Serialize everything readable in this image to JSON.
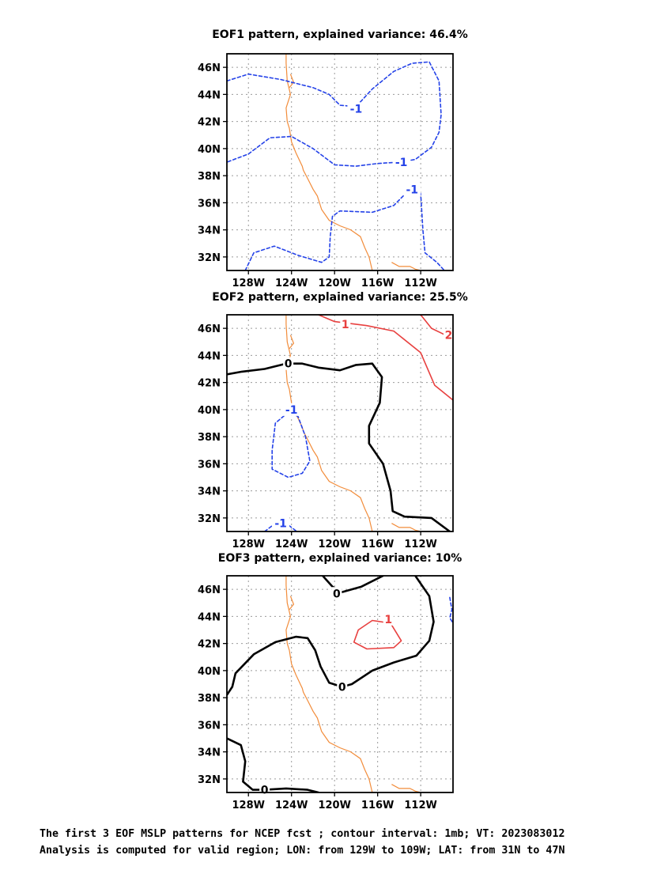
{
  "chart_data": [
    {
      "type": "contour",
      "title": "EOF1 pattern, explained variance: 46.4%",
      "xlim": [
        -130,
        -109
      ],
      "ylim": [
        31,
        47
      ],
      "x_ticks": [
        "128W",
        "124W",
        "120W",
        "116W",
        "112W"
      ],
      "y_ticks": [
        "32N",
        "34N",
        "36N",
        "38N",
        "40N",
        "42N",
        "44N",
        "46N"
      ],
      "grid": true,
      "contours": [
        {
          "level": -1,
          "label": "-1",
          "color": "#2442e8",
          "style": "dashed",
          "points": [
            [
              -130,
              45.0
            ],
            [
              -128,
              45.5
            ],
            [
              -125,
              45.1
            ],
            [
              -122,
              44.5
            ],
            [
              -120.5,
              44.0
            ],
            [
              -119.5,
              43.2
            ],
            [
              -118,
              43.1
            ],
            [
              -116.5,
              44.4
            ],
            [
              -114.5,
              45.7
            ],
            [
              -112.8,
              46.3
            ],
            [
              -111.2,
              46.4
            ],
            [
              -110.3,
              45.0
            ],
            [
              -110.1,
              42.5
            ],
            [
              -110.3,
              41.2
            ],
            [
              -111,
              40.1
            ],
            [
              -112.5,
              39.2
            ],
            [
              -114,
              39.0
            ],
            [
              -116,
              38.9
            ],
            [
              -118,
              38.7
            ],
            [
              -120,
              38.8
            ],
            [
              -122,
              40.0
            ],
            [
              -124,
              40.9
            ],
            [
              -126,
              40.8
            ],
            [
              -128,
              39.6
            ],
            [
              -130,
              39.0
            ]
          ]
        },
        {
          "level": -1,
          "label": "-1",
          "color": "#2442e8",
          "style": "dashed",
          "points": [
            [
              -128.3,
              31.0
            ],
            [
              -127.5,
              32.3
            ],
            [
              -125.6,
              32.8
            ],
            [
              -123.3,
              32.1
            ],
            [
              -121.2,
              31.6
            ],
            [
              -120.5,
              32.0
            ],
            [
              -120.4,
              33.5
            ],
            [
              -120.2,
              35.0
            ],
            [
              -119.5,
              35.4
            ],
            [
              -116.5,
              35.3
            ],
            [
              -114.5,
              35.8
            ],
            [
              -113.5,
              36.6
            ],
            [
              -112.6,
              37.0
            ],
            [
              -112,
              36.7
            ],
            [
              -111.8,
              34.0
            ],
            [
              -111.6,
              32.3
            ],
            [
              -110.5,
              31.6
            ],
            [
              -109.8,
              31.0
            ]
          ]
        }
      ],
      "contour_labels": [
        {
          "text": "-1",
          "lon": -118.0,
          "lat": 42.95
        },
        {
          "text": "-1",
          "lon": -113.8,
          "lat": 39.0
        },
        {
          "text": "-1",
          "lon": -112.8,
          "lat": 37.0
        }
      ]
    },
    {
      "type": "contour",
      "title": "EOF2 pattern, explained variance: 25.5%",
      "xlim": [
        -130,
        -109
      ],
      "ylim": [
        31,
        47
      ],
      "x_ticks": [
        "128W",
        "124W",
        "120W",
        "116W",
        "112W"
      ],
      "y_ticks": [
        "32N",
        "34N",
        "36N",
        "38N",
        "40N",
        "42N",
        "44N",
        "46N"
      ],
      "grid": true,
      "contours": [
        {
          "level": 0,
          "label": "0",
          "color": "#000000",
          "style": "solid",
          "points": [
            [
              -130,
              42.6
            ],
            [
              -128.6,
              42.8
            ],
            [
              -126.5,
              43.0
            ],
            [
              -124.5,
              43.4
            ],
            [
              -123,
              43.4
            ],
            [
              -121.5,
              43.1
            ],
            [
              -119.5,
              42.9
            ],
            [
              -118,
              43.3
            ],
            [
              -116.5,
              43.4
            ],
            [
              -115.6,
              42.4
            ],
            [
              -115.8,
              40.5
            ],
            [
              -116.8,
              38.8
            ],
            [
              -116.8,
              37.5
            ],
            [
              -115.5,
              36.0
            ],
            [
              -114.8,
              34.0
            ],
            [
              -114.6,
              32.5
            ],
            [
              -113.5,
              32.1
            ],
            [
              -111,
              32.0
            ],
            [
              -109.3,
              31.0
            ]
          ]
        },
        {
          "level": 1,
          "label": "1",
          "color": "#e8403f",
          "style": "solid",
          "points": [
            [
              -121.5,
              47.0
            ],
            [
              -120,
              46.5
            ],
            [
              -117,
              46.2
            ],
            [
              -114.5,
              45.8
            ],
            [
              -112,
              44.2
            ],
            [
              -110.7,
              41.8
            ],
            [
              -109,
              40.7
            ]
          ]
        },
        {
          "level": 2,
          "label": "2",
          "color": "#e8403f",
          "style": "solid",
          "points": [
            [
              -112,
              47.0
            ],
            [
              -111,
              46.0
            ],
            [
              -109.7,
              45.5
            ],
            [
              -109,
              45.5
            ]
          ]
        },
        {
          "level": -1,
          "label": "-1",
          "color": "#2442e8",
          "style": "dashed",
          "points": [
            [
              -124.3,
              39.8
            ],
            [
              -125.5,
              39.0
            ],
            [
              -125.8,
              37.0
            ],
            [
              -125.8,
              35.6
            ],
            [
              -124.3,
              35.0
            ],
            [
              -123,
              35.3
            ],
            [
              -122.3,
              36.2
            ],
            [
              -122.7,
              38.0
            ],
            [
              -123.4,
              39.5
            ],
            [
              -124.3,
              39.8
            ]
          ]
        },
        {
          "level": -1,
          "label": "-1",
          "color": "#2442e8",
          "style": "dashed",
          "points": [
            [
              -126.5,
              31.0
            ],
            [
              -125.5,
              31.6
            ],
            [
              -124.5,
              31.6
            ],
            [
              -123.5,
              31.0
            ]
          ]
        }
      ],
      "contour_labels": [
        {
          "text": "1",
          "lon": -119.0,
          "lat": 46.3
        },
        {
          "text": "2",
          "lon": -109.4,
          "lat": 45.5
        },
        {
          "text": "0",
          "lon": -124.3,
          "lat": 43.4
        },
        {
          "text": "-1",
          "lon": -124.0,
          "lat": 40.0
        },
        {
          "text": "-1",
          "lon": -125.0,
          "lat": 31.6
        }
      ]
    },
    {
      "type": "contour",
      "title": "EOF3 pattern, explained variance: 10%",
      "xlim": [
        -130,
        -109
      ],
      "ylim": [
        31,
        47
      ],
      "x_ticks": [
        "128W",
        "124W",
        "120W",
        "116W",
        "112W"
      ],
      "y_ticks": [
        "32N",
        "34N",
        "36N",
        "38N",
        "40N",
        "42N",
        "44N",
        "46N"
      ],
      "grid": true,
      "contours": [
        {
          "level": 0,
          "label": "0",
          "color": "#000000",
          "style": "solid",
          "points": [
            [
              -121.1,
              47.0
            ],
            [
              -120.2,
              46.2
            ],
            [
              -119.3,
              45.8
            ],
            [
              -117.5,
              46.2
            ],
            [
              -115.5,
              47.0
            ]
          ]
        },
        {
          "level": 0,
          "label": "0",
          "color": "#000000",
          "style": "solid",
          "points": [
            [
              -112.5,
              47.0
            ],
            [
              -111.2,
              45.5
            ],
            [
              -110.8,
              43.6
            ],
            [
              -111.2,
              42.2
            ],
            [
              -112.4,
              41.1
            ],
            [
              -114.5,
              40.6
            ],
            [
              -116.5,
              40.0
            ],
            [
              -118.4,
              39.0
            ],
            [
              -119.3,
              38.8
            ],
            [
              -120.5,
              39.1
            ],
            [
              -121.3,
              40.3
            ],
            [
              -121.8,
              41.5
            ],
            [
              -122.5,
              42.4
            ],
            [
              -123.6,
              42.5
            ],
            [
              -125.5,
              42.1
            ],
            [
              -127.5,
              41.2
            ],
            [
              -129.2,
              39.8
            ],
            [
              -129.5,
              38.8
            ],
            [
              -130,
              38.2
            ]
          ]
        },
        {
          "level": 0,
          "label": "0",
          "color": "#000000",
          "style": "solid",
          "points": [
            [
              -130,
              35.0
            ],
            [
              -128.7,
              34.5
            ],
            [
              -128.3,
              33.3
            ],
            [
              -128.5,
              31.8
            ],
            [
              -127.6,
              31.2
            ],
            [
              -126.5,
              31.2
            ],
            [
              -124.5,
              31.3
            ],
            [
              -122.5,
              31.2
            ],
            [
              -121.5,
              31.0
            ]
          ]
        },
        {
          "level": 1,
          "label": "1",
          "color": "#e8403f",
          "style": "solid",
          "points": [
            [
              -116.5,
              43.7
            ],
            [
              -114.8,
              43.5
            ],
            [
              -113.8,
              42.2
            ],
            [
              -114.5,
              41.7
            ],
            [
              -117,
              41.6
            ],
            [
              -118.2,
              42.1
            ],
            [
              -117.8,
              43.0
            ],
            [
              -116.5,
              43.7
            ]
          ]
        },
        {
          "level": -1,
          "label": "-1",
          "color": "#2442e8",
          "style": "dashed",
          "points": [
            [
              -109.3,
              45.4
            ],
            [
              -109.1,
              44.5
            ],
            [
              -109.3,
              43.9
            ],
            [
              -109,
              43.5
            ]
          ]
        }
      ],
      "contour_labels": [
        {
          "text": "0",
          "lon": -119.8,
          "lat": 45.7
        },
        {
          "text": "0",
          "lon": -119.3,
          "lat": 38.8
        },
        {
          "text": "0",
          "lon": -126.5,
          "lat": 31.2
        },
        {
          "text": "1",
          "lon": -115.0,
          "lat": 43.8
        }
      ]
    }
  ],
  "coastline": {
    "color": "#f28c3a",
    "west_coast": [
      [
        -124.5,
        47.0
      ],
      [
        -124.5,
        46.3
      ],
      [
        -124.4,
        45.0
      ],
      [
        -124.1,
        44.0
      ],
      [
        -124.5,
        43.0
      ],
      [
        -124.4,
        42.0
      ],
      [
        -124.2,
        41.5
      ],
      [
        -124.0,
        40.5
      ],
      [
        -123.6,
        39.7
      ],
      [
        -123.0,
        38.7
      ],
      [
        -122.9,
        38.4
      ],
      [
        -122.5,
        37.8
      ],
      [
        -122.0,
        37.0
      ],
      [
        -121.6,
        36.5
      ],
      [
        -121.2,
        35.5
      ],
      [
        -120.5,
        34.7
      ],
      [
        -119.5,
        34.3
      ],
      [
        -118.5,
        34.0
      ],
      [
        -117.6,
        33.5
      ],
      [
        -117.2,
        32.7
      ],
      [
        -116.8,
        32.0
      ],
      [
        -116.5,
        31.0
      ]
    ],
    "gulf_coast": [
      [
        -114.7,
        31.6
      ],
      [
        -114.0,
        31.3
      ],
      [
        -113.0,
        31.3
      ],
      [
        -112.5,
        31.1
      ],
      [
        -112.0,
        31.0
      ]
    ],
    "inlet": [
      [
        -124.2,
        44.5
      ],
      [
        -123.8,
        44.9
      ],
      [
        -124.1,
        45.5
      ]
    ]
  },
  "caption": [
    "The first 3 EOF MSLP patterns for NCEP fcst ; contour interval: 1mb; VT: 2023083012",
    "Analysis is computed for valid region; LON: from 129W to 109W; LAT: from 31N to 47N"
  ]
}
